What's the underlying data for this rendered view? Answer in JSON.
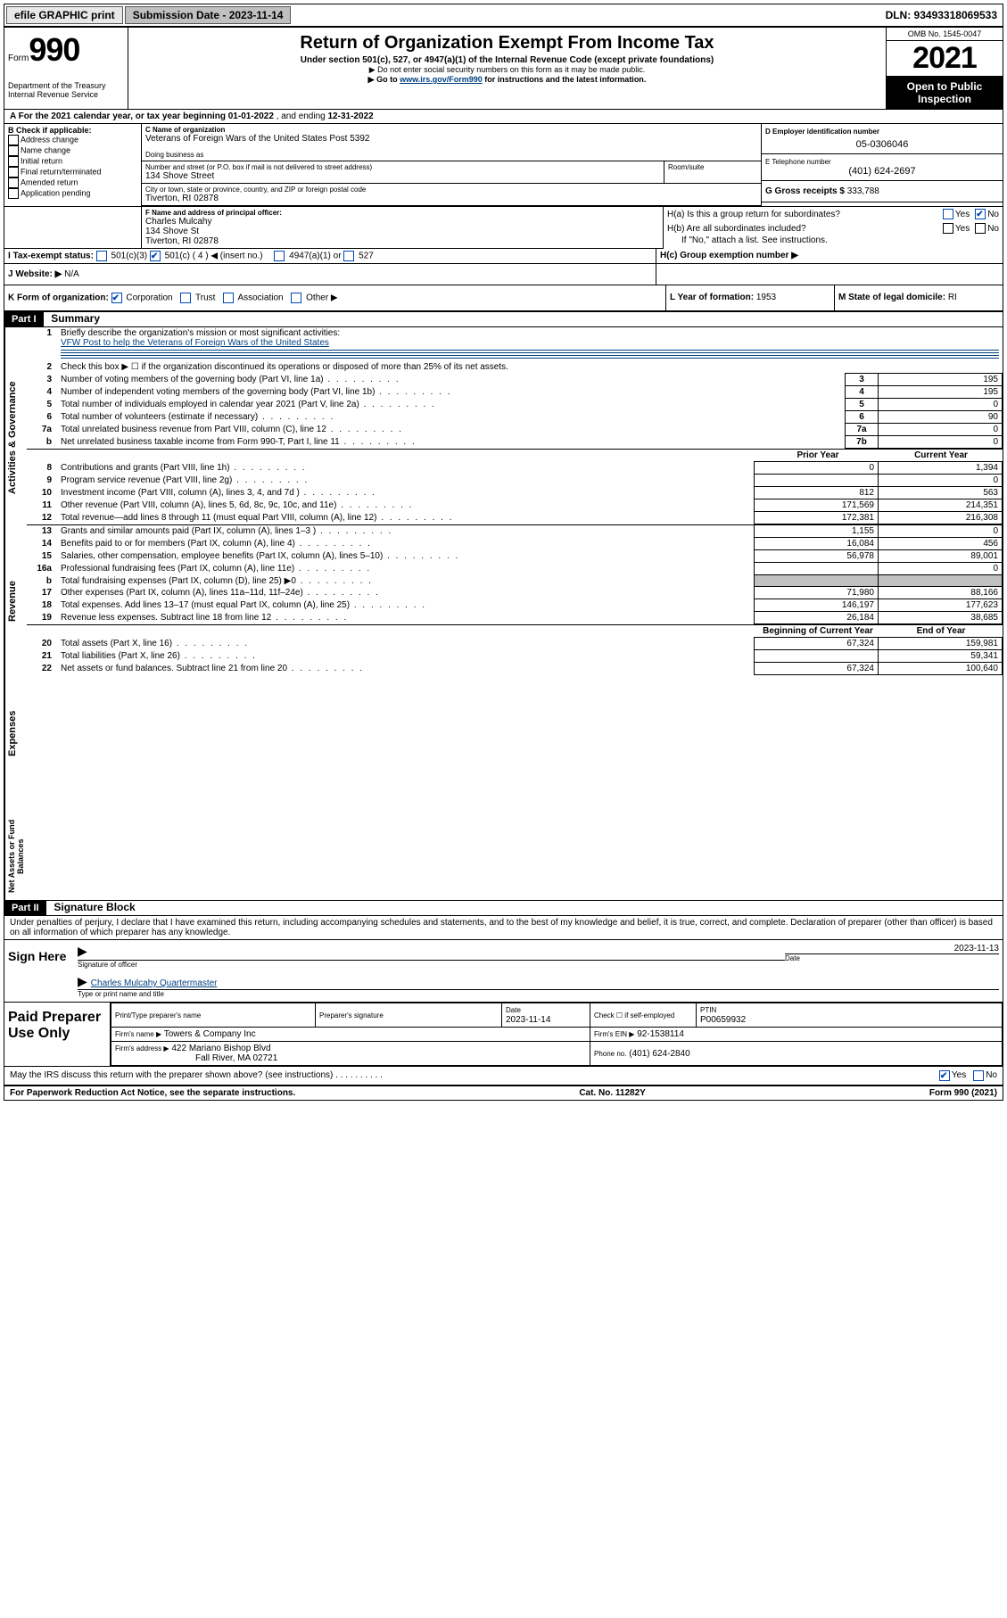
{
  "topbar": {
    "efile": "efile GRAPHIC print",
    "submission_label": "Submission Date - 2023-11-14",
    "dln_label": "DLN: 93493318069533"
  },
  "header": {
    "form_word": "Form",
    "form_num": "990",
    "title": "Return of Organization Exempt From Income Tax",
    "subtitle": "Under section 501(c), 527, or 4947(a)(1) of the Internal Revenue Code (except private foundations)",
    "note1": "▶ Do not enter social security numbers on this form as it may be made public.",
    "note2_pre": "▶ Go to ",
    "note2_link": "www.irs.gov/Form990",
    "note2_post": " for instructions and the latest information.",
    "dept": "Department of the Treasury\nInternal Revenue Service",
    "omb": "OMB No. 1545-0047",
    "year": "2021",
    "open": "Open to Public Inspection"
  },
  "sectionA": {
    "text_pre": "A For the 2021 calendar year, or tax year beginning ",
    "begin": "01-01-2022",
    "mid": " , and ending ",
    "end": "12-31-2022"
  },
  "blockB": {
    "title": "B Check if applicable:",
    "items": [
      "Address change",
      "Name change",
      "Initial return",
      "Final return/terminated",
      "Amended return",
      "Application pending"
    ]
  },
  "blockC": {
    "label_name": "C Name of organization",
    "org_name": "Veterans of Foreign Wars of the United States Post 5392",
    "dba_label": "Doing business as",
    "addr_label": "Number and street (or P.O. box if mail is not delivered to street address)",
    "room_label": "Room/suite",
    "street": "134 Shove Street",
    "city_label": "City or town, state or province, country, and ZIP or foreign postal code",
    "city": "Tiverton, RI  02878"
  },
  "blockD": {
    "label": "D Employer identification number",
    "val": "05-0306046"
  },
  "blockE": {
    "label": "E Telephone number",
    "val": "(401) 624-2697"
  },
  "blockG": {
    "label": "G Gross receipts $",
    "val": "333,788"
  },
  "blockF": {
    "label": "F Name and address of principal officer:",
    "name": "Charles Mulcahy",
    "street": "134 Shove St",
    "city": "Tiverton, RI  02878"
  },
  "blockH": {
    "a": "H(a)  Is this a group return for subordinates?",
    "b": "H(b)  Are all subordinates included?",
    "b_note": "If \"No,\" attach a list. See instructions.",
    "c": "H(c)  Group exemption number ▶",
    "yes": "Yes",
    "no": "No"
  },
  "blockI": {
    "label": "I    Tax-exempt status:",
    "opts": [
      "501(c)(3)",
      "501(c) ( 4 ) ◀ (insert no.)",
      "4947(a)(1) or",
      "527"
    ]
  },
  "blockJ": {
    "label": "J    Website: ▶",
    "val": "N/A"
  },
  "blockK": {
    "label": "K Form of organization:",
    "opts": [
      "Corporation",
      "Trust",
      "Association",
      "Other ▶"
    ]
  },
  "blockL": {
    "label": "L Year of formation:",
    "val": "1953"
  },
  "blockM": {
    "label": "M State of legal domicile:",
    "val": "RI"
  },
  "part1": {
    "header": "Part I",
    "title": "Summary",
    "vlabel1": "Activities & Governance",
    "vlabel2": "Revenue",
    "vlabel3": "Expenses",
    "vlabel4": "Net Assets or Fund Balances",
    "line1": "Briefly describe the organization's mission or most significant activities:",
    "mission": "VFW Post to help the Veterans of Foreign Wars of the United States",
    "line2": "Check this box ▶ ☐  if the organization discontinued its operations or disposed of more than 25% of its net assets.",
    "lines_gov": [
      {
        "n": "3",
        "t": "Number of voting members of the governing body (Part VI, line 1a)",
        "box": "3",
        "v": "195"
      },
      {
        "n": "4",
        "t": "Number of independent voting members of the governing body (Part VI, line 1b)",
        "box": "4",
        "v": "195"
      },
      {
        "n": "5",
        "t": "Total number of individuals employed in calendar year 2021 (Part V, line 2a)",
        "box": "5",
        "v": "0"
      },
      {
        "n": "6",
        "t": "Total number of volunteers (estimate if necessary)",
        "box": "6",
        "v": "90"
      },
      {
        "n": "7a",
        "t": "Total unrelated business revenue from Part VIII, column (C), line 12",
        "box": "7a",
        "v": "0"
      },
      {
        "n": "b",
        "t": "Net unrelated business taxable income from Form 990-T, Part I, line 11",
        "box": "7b",
        "v": "0"
      }
    ],
    "col_prior": "Prior Year",
    "col_current": "Current Year",
    "lines_rev": [
      {
        "n": "8",
        "t": "Contributions and grants (Part VIII, line 1h)",
        "p": "0",
        "c": "1,394"
      },
      {
        "n": "9",
        "t": "Program service revenue (Part VIII, line 2g)",
        "p": "",
        "c": "0"
      },
      {
        "n": "10",
        "t": "Investment income (Part VIII, column (A), lines 3, 4, and 7d )",
        "p": "812",
        "c": "563"
      },
      {
        "n": "11",
        "t": "Other revenue (Part VIII, column (A), lines 5, 6d, 8c, 9c, 10c, and 11e)",
        "p": "171,569",
        "c": "214,351"
      },
      {
        "n": "12",
        "t": "Total revenue—add lines 8 through 11 (must equal Part VIII, column (A), line 12)",
        "p": "172,381",
        "c": "216,308"
      }
    ],
    "lines_exp": [
      {
        "n": "13",
        "t": "Grants and similar amounts paid (Part IX, column (A), lines 1–3 )",
        "p": "1,155",
        "c": "0"
      },
      {
        "n": "14",
        "t": "Benefits paid to or for members (Part IX, column (A), line 4)",
        "p": "16,084",
        "c": "456"
      },
      {
        "n": "15",
        "t": "Salaries, other compensation, employee benefits (Part IX, column (A), lines 5–10)",
        "p": "56,978",
        "c": "89,001"
      },
      {
        "n": "16a",
        "t": "Professional fundraising fees (Part IX, column (A), line 11e)",
        "p": "",
        "c": "0"
      },
      {
        "n": "b",
        "t": "Total fundraising expenses (Part IX, column (D), line 25) ▶0",
        "p": "shaded",
        "c": "shaded"
      },
      {
        "n": "17",
        "t": "Other expenses (Part IX, column (A), lines 11a–11d, 11f–24e)",
        "p": "71,980",
        "c": "88,166"
      },
      {
        "n": "18",
        "t": "Total expenses. Add lines 13–17 (must equal Part IX, column (A), line 25)",
        "p": "146,197",
        "c": "177,623"
      },
      {
        "n": "19",
        "t": "Revenue less expenses. Subtract line 18 from line 12",
        "p": "26,184",
        "c": "38,685"
      }
    ],
    "col_begin": "Beginning of Current Year",
    "col_end": "End of Year",
    "lines_net": [
      {
        "n": "20",
        "t": "Total assets (Part X, line 16)",
        "p": "67,324",
        "c": "159,981"
      },
      {
        "n": "21",
        "t": "Total liabilities (Part X, line 26)",
        "p": "",
        "c": "59,341"
      },
      {
        "n": "22",
        "t": "Net assets or fund balances. Subtract line 21 from line 20",
        "p": "67,324",
        "c": "100,640"
      }
    ]
  },
  "part2": {
    "header": "Part II",
    "title": "Signature Block",
    "decl": "Under penalties of perjury, I declare that I have examined this return, including accompanying schedules and statements, and to the best of my knowledge and belief, it is true, correct, and complete. Declaration of preparer (other than officer) is based on all information of which preparer has any knowledge.",
    "sign_here": "Sign Here",
    "sig_officer": "Signature of officer",
    "sig_date": "2023-11-13",
    "date_label": "Date",
    "officer_name": "Charles Mulcahy Quartermaster",
    "officer_type": "Type or print name and title",
    "paid": "Paid Preparer Use Only",
    "prep_name_label": "Print/Type preparer's name",
    "prep_sig_label": "Preparer's signature",
    "prep_date_label": "Date",
    "prep_date": "2023-11-14",
    "check_if": "Check ☐ if self-employed",
    "ptin_label": "PTIN",
    "ptin": "P00659932",
    "firm_name_label": "Firm's name    ▶",
    "firm_name": "Towers & Company Inc",
    "firm_ein_label": "Firm's EIN ▶",
    "firm_ein": "92-1538114",
    "firm_addr_label": "Firm's address ▶",
    "firm_addr": "422 Mariano Bishop Blvd",
    "firm_city": "Fall River, MA  02721",
    "phone_label": "Phone no.",
    "phone": "(401) 624-2840",
    "discuss": "May the IRS discuss this return with the preparer shown above? (see instructions)"
  },
  "footer": {
    "left": "For Paperwork Reduction Act Notice, see the separate instructions.",
    "mid": "Cat. No. 11282Y",
    "right": "Form 990 (2021)"
  }
}
